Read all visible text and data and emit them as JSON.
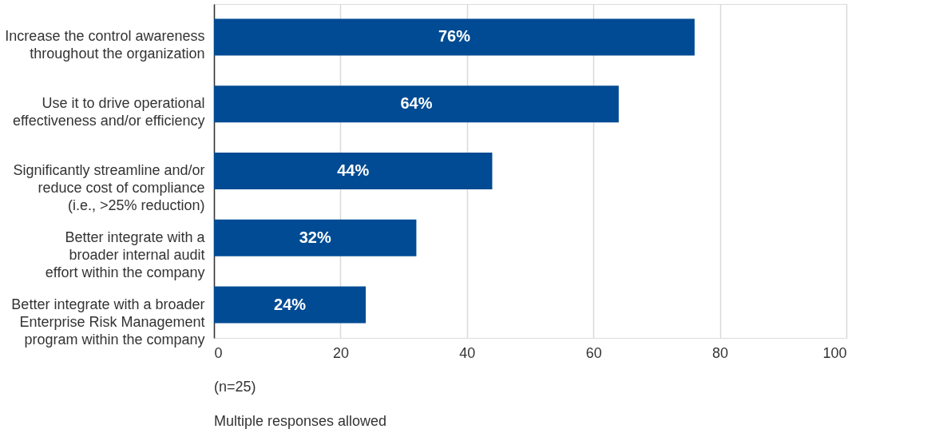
{
  "chart_data": {
    "type": "bar",
    "orientation": "horizontal",
    "categories": [
      "Increase the control awareness\nthroughout the organization",
      "Use it to drive operational\neffectiveness and/or efficiency",
      "Significantly streamline and/or\nreduce cost of compliance\n(i.e., >25% reduction)",
      "Better integrate with a\nbroader internal audit\neffort within the company",
      "Better integrate with a broader\nEnterprise Risk Management\nprogram within the company"
    ],
    "values": [
      76,
      64,
      44,
      32,
      24
    ],
    "value_labels": [
      "76%",
      "64%",
      "44%",
      "32%",
      "24%"
    ],
    "color": "#004b93",
    "xlim": [
      0,
      100
    ],
    "xticks": [
      0,
      20,
      40,
      60,
      80,
      100
    ],
    "grid": "x",
    "annotations": [
      "(n=25)",
      "Multiple responses allowed"
    ]
  }
}
